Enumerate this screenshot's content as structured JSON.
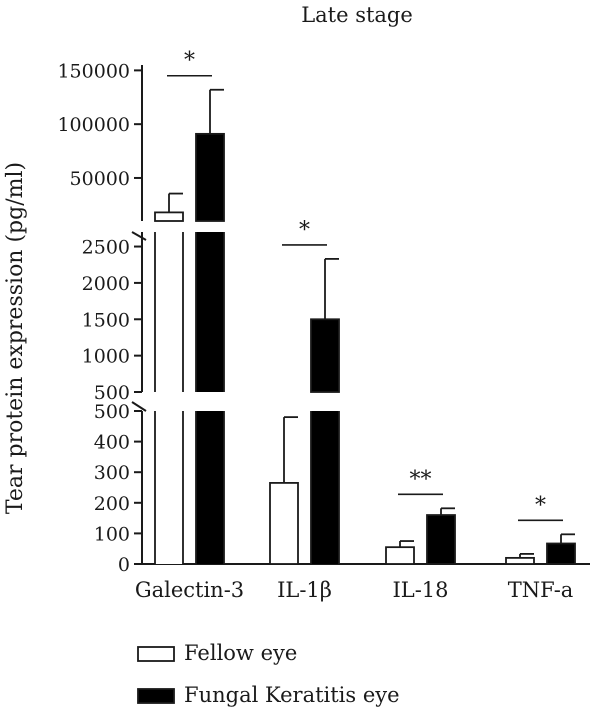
{
  "chart_data": {
    "type": "bar",
    "title": "Late stage",
    "ylabel": "Tear protein expression (pg/ml)",
    "xlabel": "",
    "categories": [
      "Galectin-3",
      "IL-1β",
      "IL-18",
      "TNF-a"
    ],
    "series": [
      {
        "name": "Fellow eye",
        "color": "#ffffff",
        "values": [
          18000,
          265,
          55,
          20
        ],
        "errors": [
          17500,
          215,
          20,
          13
        ]
      },
      {
        "name": "Fungal Keratitis eye",
        "color": "#000000",
        "values": [
          91000,
          1500,
          160,
          67
        ],
        "errors": [
          41000,
          830,
          22,
          30
        ]
      }
    ],
    "significance": [
      "*",
      "*",
      "**",
      "*"
    ],
    "axis_segments": [
      {
        "range": [
          0,
          500
        ],
        "ticks": [
          0,
          100,
          200,
          300,
          400,
          500
        ],
        "tick_labels": [
          "0",
          "100",
          "200",
          "300",
          "400",
          "500"
        ]
      },
      {
        "range": [
          500,
          2700
        ],
        "ticks": [
          500,
          1000,
          1500,
          2000,
          2500
        ],
        "tick_labels": [
          "500",
          "1000",
          "1500",
          "2000",
          "2500"
        ]
      },
      {
        "range": [
          10000,
          155000
        ],
        "ticks": [
          50000,
          100000,
          150000
        ],
        "tick_labels": [
          "50000",
          "100000",
          "150000"
        ]
      }
    ],
    "legend_position": "bottom-left"
  }
}
